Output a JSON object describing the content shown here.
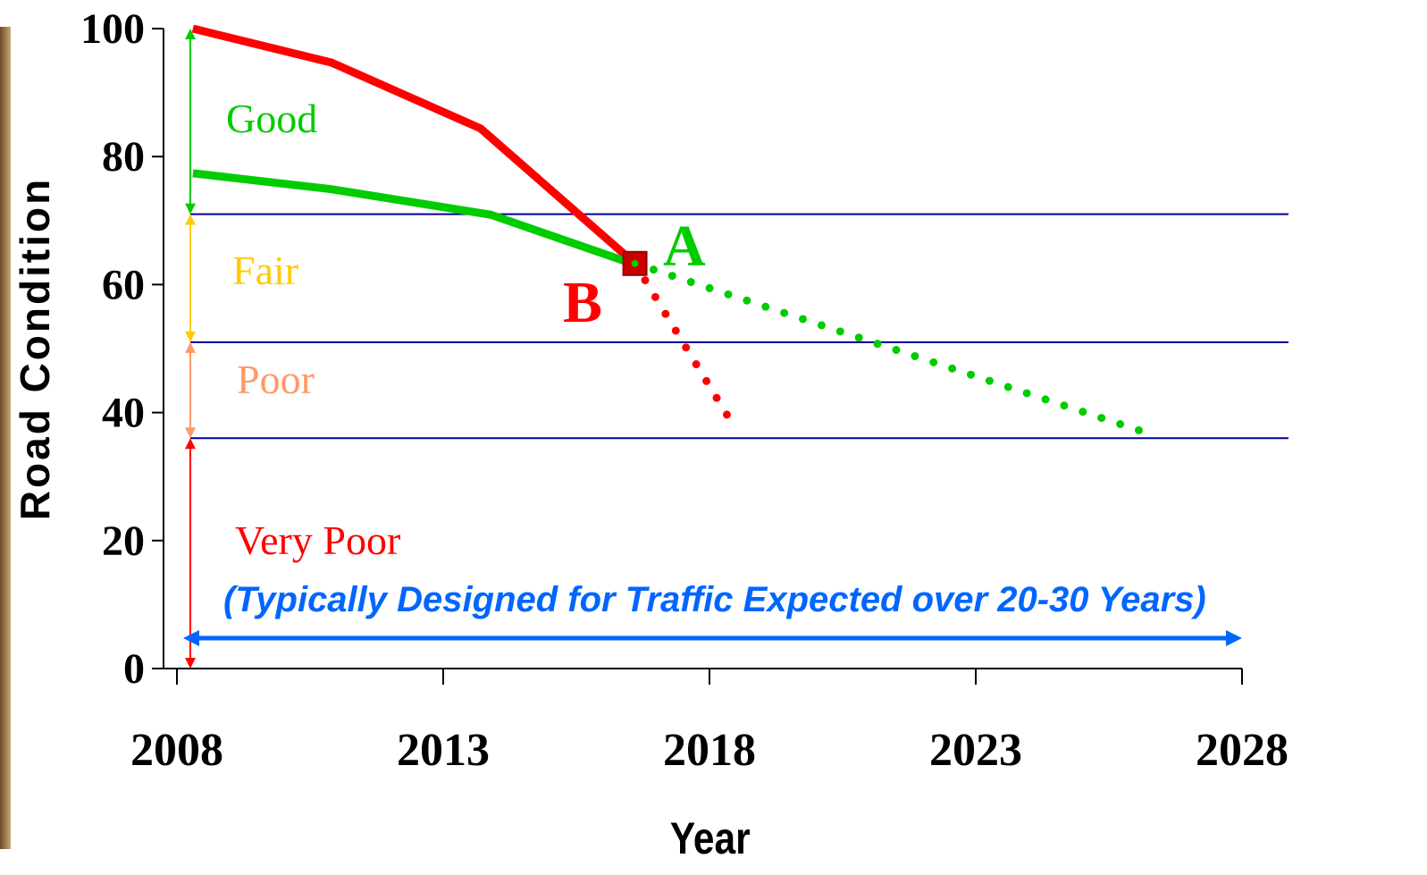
{
  "chart_data": {
    "type": "line",
    "y_label": "Road Condition",
    "x_label": "Year",
    "xlim": [
      2008,
      2028
    ],
    "xticks": [
      2008,
      2013,
      2018,
      2023,
      2028
    ],
    "ylim": [
      0,
      100
    ],
    "yticks": [
      0,
      20,
      40,
      60,
      80,
      100
    ],
    "series": [
      {
        "color": "#ff0000",
        "style": "solid",
        "x": [
          2008.3,
          2010.9,
          2013.7,
          2016.6
        ],
        "values": [
          100,
          94.7,
          84.4,
          63.3
        ]
      },
      {
        "color": "#ff0000",
        "style": "dotted",
        "x": [
          2016.6,
          2018.5
        ],
        "values": [
          63.3,
          37.3
        ]
      },
      {
        "color": "#00cc00",
        "style": "solid",
        "x": [
          2008.3,
          2010.9,
          2013.9,
          2016.4
        ],
        "values": [
          77.4,
          74.9,
          70.9,
          63.7
        ]
      },
      {
        "color": "#00cc00",
        "style": "dotted",
        "x": [
          2016.6,
          2026.4
        ],
        "values": [
          63.3,
          36.3
        ]
      }
    ],
    "bands": [
      {
        "label": "Good",
        "color": "#00cc00",
        "range": [
          71,
          100
        ]
      },
      {
        "label": "Fair",
        "color": "#ffcc00",
        "range": [
          51,
          71
        ]
      },
      {
        "label": "Poor",
        "color": "#ff9966",
        "range": [
          36,
          51
        ]
      },
      {
        "label": "Very Poor",
        "color": "#ff0000",
        "range": [
          0,
          36
        ]
      }
    ],
    "point_labels": [
      {
        "label": "A",
        "color": "#00cc00"
      },
      {
        "label": "B",
        "color": "#ff0000"
      }
    ],
    "annotation": "(Typically Designed for Traffic Expected over 20-30 Years)",
    "annotation_color": "#0066ff",
    "threshold_color": "#000099"
  }
}
